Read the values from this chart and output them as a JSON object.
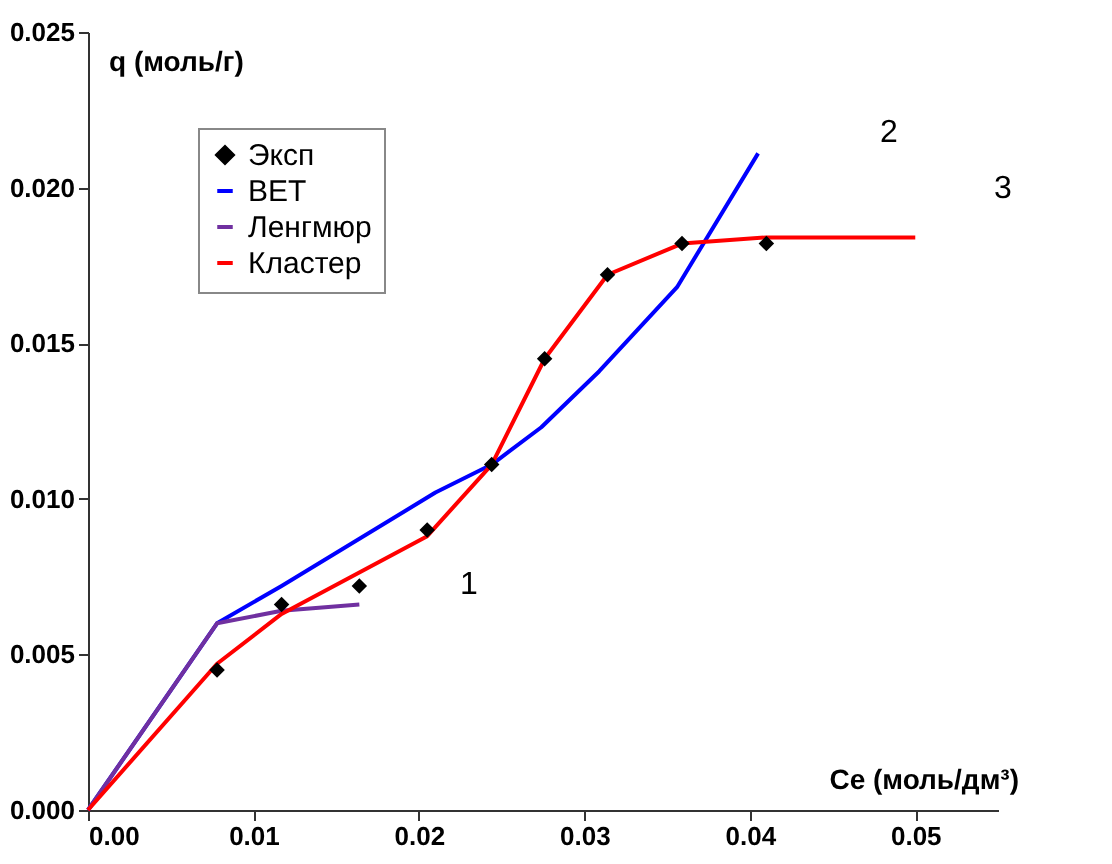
{
  "chart_data": {
    "type": "line",
    "xlabel": "Ce (моль/дм³)",
    "ylabel": "q (моль/г)",
    "xlim": [
      0,
      0.055
    ],
    "ylim": [
      0,
      0.025
    ],
    "xticks": [
      {
        "value": 0,
        "label": "0.00"
      },
      {
        "value": 0.01,
        "label": "0.01"
      },
      {
        "value": 0.02,
        "label": "0.02"
      },
      {
        "value": 0.03,
        "label": "0.03"
      },
      {
        "value": 0.04,
        "label": "0.04"
      },
      {
        "value": 0.05,
        "label": "0.05"
      }
    ],
    "yticks": [
      {
        "value": 0,
        "label": "0.000"
      },
      {
        "value": 0.005,
        "label": "0.005"
      },
      {
        "value": 0.01,
        "label": "0.010"
      },
      {
        "value": 0.015,
        "label": "0.015"
      },
      {
        "value": 0.02,
        "label": "0.020"
      },
      {
        "value": 0.025,
        "label": "0.025"
      }
    ],
    "grid": false,
    "legend": "top left",
    "series": [
      {
        "name": "Эксп",
        "type": "scatter",
        "marker": "diamond",
        "color": "#000000",
        "x": [
          0.0078,
          0.0117,
          0.0164,
          0.0205,
          0.0244,
          0.0276,
          0.0314,
          0.0359,
          0.041
        ],
        "values": [
          0.0045,
          0.0066,
          0.0072,
          0.009,
          0.0111,
          0.0145,
          0.0172,
          0.0182,
          0.0182
        ]
      },
      {
        "name": "BET",
        "type": "line",
        "color": "#0000ff",
        "x": [
          0,
          0.0078,
          0.0117,
          0.021,
          0.0244,
          0.0274,
          0.0309,
          0.0356,
          0.0405
        ],
        "values": [
          0,
          0.006,
          0.0072,
          0.0102,
          0.0111,
          0.0123,
          0.0141,
          0.0168,
          0.0211
        ]
      },
      {
        "name": "Ленгмюр",
        "type": "line",
        "color": "#7030a0",
        "x": [
          0,
          0.0078,
          0.0117,
          0.0164
        ],
        "values": [
          0,
          0.006,
          0.0064,
          0.0066
        ]
      },
      {
        "name": "Кластер",
        "type": "line",
        "color": "#ff0000",
        "x": [
          0,
          0.0078,
          0.0117,
          0.0205,
          0.0244,
          0.0276,
          0.0314,
          0.0359,
          0.041,
          0.05
        ],
        "values": [
          0,
          0.0047,
          0.0063,
          0.0088,
          0.0111,
          0.0145,
          0.0172,
          0.0182,
          0.0184,
          0.0184
        ]
      }
    ],
    "annotations": [
      "1",
      "2",
      "3"
    ]
  }
}
